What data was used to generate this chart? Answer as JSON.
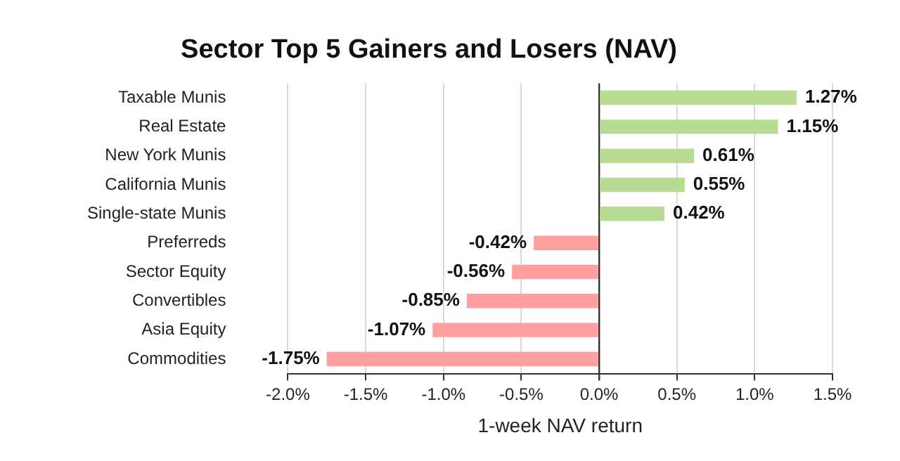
{
  "chart_data": {
    "type": "bar",
    "orientation": "horizontal",
    "title": "Sector Top 5 Gainers and Losers (NAV)",
    "xlabel": "1-week NAV return",
    "categories": [
      "Taxable Munis",
      "Real Estate",
      "New York Munis",
      "California Munis",
      "Single-state Munis",
      "Preferreds",
      "Sector Equity",
      "Convertibles",
      "Asia Equity",
      "Commodities"
    ],
    "values": [
      1.27,
      1.15,
      0.61,
      0.55,
      0.42,
      -0.42,
      -0.56,
      -0.85,
      -1.07,
      -1.75
    ],
    "value_labels": [
      "1.27%",
      "1.15%",
      "0.61%",
      "0.55%",
      "0.42%",
      "-0.42%",
      "-0.56%",
      "-0.85%",
      "-1.07%",
      "-1.75%"
    ],
    "colors": [
      "#b9dc94",
      "#b9dc94",
      "#b9dc94",
      "#b9dc94",
      "#b9dc94",
      "#ff9f9f",
      "#ff9f9f",
      "#ff9f9f",
      "#ff9f9f",
      "#ff9f9f"
    ],
    "xlim": [
      -2,
      1.5
    ],
    "xticks": [
      {
        "value": -2,
        "label": "-2.0%"
      },
      {
        "value": -1.5,
        "label": "-1.5%"
      },
      {
        "value": -1,
        "label": "-1.0%"
      },
      {
        "value": -0.5,
        "label": "-0.5%"
      },
      {
        "value": 0,
        "label": "0.0%"
      },
      {
        "value": 0.5,
        "label": "0.5%"
      },
      {
        "value": 1,
        "label": "1.0%"
      },
      {
        "value": 1.5,
        "label": "1.5%"
      }
    ],
    "grid": "x",
    "legend": false
  }
}
